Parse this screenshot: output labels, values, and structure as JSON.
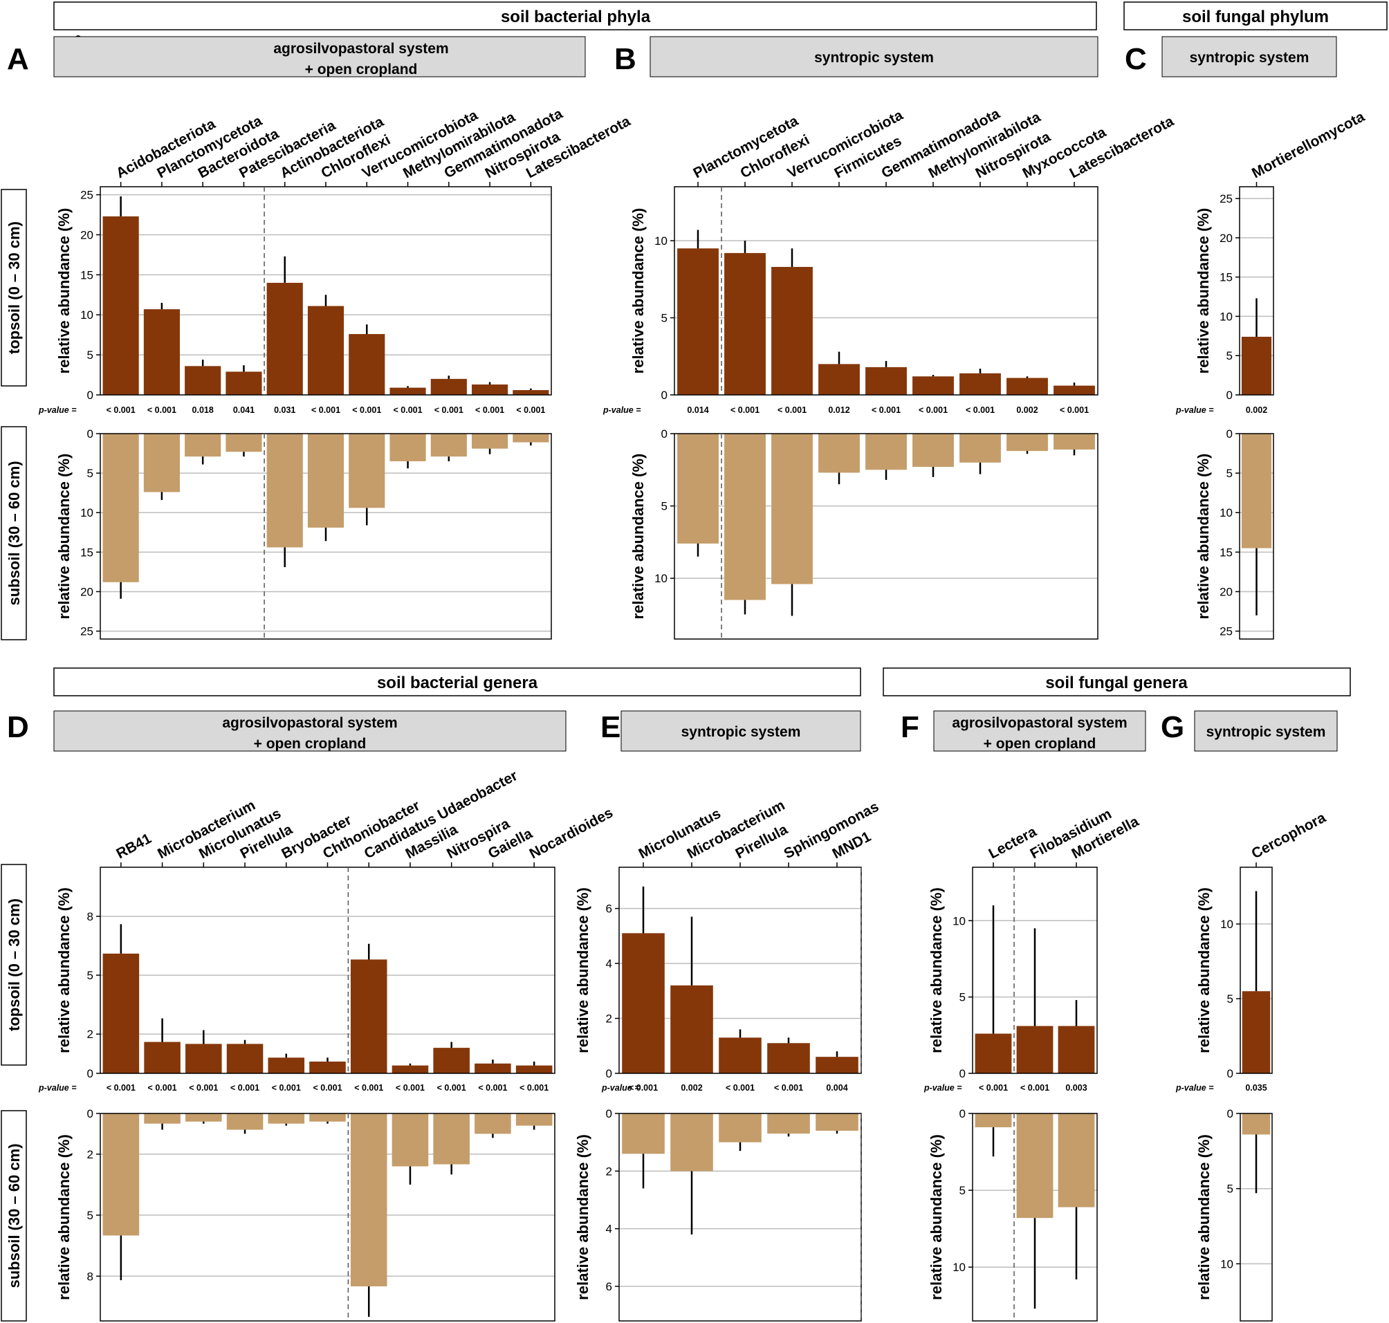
{
  "figure": {
    "sections": [
      "soil bacterial phyla",
      "soil fungal phylum",
      "soil bacterial genera",
      "soil fungal genera"
    ],
    "depth_labels": {
      "topsoil": "topsoil (0 – 30 cm)",
      "subsoil": "subsoil (30 – 60 cm)"
    },
    "y_label": "relative abundance (%)",
    "pvalue_label": "p-value =",
    "colors": {
      "topsoil": "#85370a",
      "subsoil": "#c59d6a",
      "header_fill": "#d9d9d9",
      "grid": "#bdbdbd",
      "error": "#000000"
    }
  },
  "chart_data": [
    {
      "id": "A",
      "type": "bar",
      "title": "agrosilvopastoral system\n+ open cropland",
      "ylabel": "relative abundance (%)",
      "top_ylim": [
        0,
        26
      ],
      "sub_ylim": [
        0,
        26
      ],
      "top_ticks": [
        0,
        5,
        10,
        15,
        20,
        25
      ],
      "sub_ticks": [
        0,
        5,
        10,
        15,
        20,
        25
      ],
      "dashed_after": 4,
      "categories": [
        "Acidobacteriota",
        "Planctomycetota",
        "Bacteroidota",
        "Patescibacteria",
        "Actinobacteriota",
        "Chloroflexi",
        "Verrucomicrobiota",
        "Methylomirabilota",
        "Gemmatimonadota",
        "Nitrospirota",
        "Latescibacterota"
      ],
      "topsoil": [
        22.3,
        10.7,
        3.6,
        2.9,
        14.0,
        11.1,
        7.6,
        0.9,
        2.0,
        1.3,
        0.6
      ],
      "topsoil_err": [
        24.8,
        11.5,
        4.4,
        3.7,
        17.3,
        12.5,
        8.8,
        1.1,
        2.4,
        1.6,
        0.8
      ],
      "subsoil": [
        18.8,
        7.4,
        2.9,
        2.3,
        14.4,
        11.9,
        9.4,
        3.5,
        2.9,
        1.9,
        1.1
      ],
      "subsoil_err": [
        20.9,
        8.4,
        3.9,
        2.9,
        16.9,
        13.6,
        11.6,
        4.4,
        3.5,
        2.6,
        1.5
      ],
      "pvalues": [
        "< 0.001",
        "< 0.001",
        "0.018",
        "0.041",
        "0.031",
        "< 0.001",
        "< 0.001",
        "< 0.001",
        "< 0.001",
        "< 0.001",
        "< 0.001"
      ]
    },
    {
      "id": "B",
      "type": "bar",
      "title": "syntropic system",
      "ylabel": "relative abundance (%)",
      "top_ylim": [
        0,
        13.5
      ],
      "sub_ylim": [
        0,
        14.2
      ],
      "top_ticks": [
        0,
        5,
        10
      ],
      "sub_ticks": [
        0,
        5,
        10
      ],
      "dashed_after": 1,
      "categories": [
        "Planctomycetota",
        "Chloroflexi",
        "Verrucomicrobiota",
        "Firmicutes",
        "Gemmatimonadota",
        "Methylomirabilota",
        "Nitrospirota",
        "Myxococcota",
        "Latescibacterota"
      ],
      "topsoil": [
        9.5,
        9.2,
        8.3,
        2.0,
        1.8,
        1.2,
        1.4,
        1.1,
        0.6
      ],
      "topsoil_err": [
        10.7,
        10.0,
        9.5,
        2.8,
        2.2,
        1.3,
        1.7,
        1.2,
        0.8
      ],
      "subsoil": [
        7.6,
        11.5,
        10.4,
        2.7,
        2.5,
        2.3,
        2.0,
        1.2,
        1.1
      ],
      "subsoil_err": [
        8.5,
        12.5,
        12.6,
        3.5,
        3.2,
        3.0,
        2.8,
        1.4,
        1.5
      ],
      "pvalues": [
        "0.014",
        "< 0.001",
        "< 0.001",
        "0.012",
        "< 0.001",
        "< 0.001",
        "< 0.001",
        "0.002",
        "< 0.001"
      ]
    },
    {
      "id": "C",
      "type": "bar",
      "title": "syntropic system",
      "ylabel": "relative abundance (%)",
      "top_ylim": [
        0,
        26.5
      ],
      "sub_ylim": [
        0,
        26
      ],
      "top_ticks": [
        0,
        5,
        10,
        15,
        20,
        25
      ],
      "sub_ticks": [
        0,
        5,
        10,
        15,
        20,
        25
      ],
      "dashed_after": null,
      "categories": [
        "Mortierellomycota"
      ],
      "topsoil": [
        7.4
      ],
      "topsoil_err": [
        12.3
      ],
      "subsoil": [
        14.5
      ],
      "subsoil_err": [
        23.0
      ],
      "pvalues": [
        "0.002"
      ]
    },
    {
      "id": "D",
      "type": "bar",
      "title": "agrosilvopastoral system\n+ open cropland",
      "ylabel": "relative abundance (%)",
      "top_ylim": [
        0,
        10.5
      ],
      "sub_ylim": [
        0,
        10.2
      ],
      "top_ticks": [
        0,
        2,
        5,
        8
      ],
      "sub_ticks": [
        0,
        2,
        5,
        8
      ],
      "dashed_after": 6,
      "categories": [
        "RB41",
        "Microbacterium",
        "Microlunatus",
        "Pirellula",
        "Bryobacter",
        "Chthoniobacter",
        "Candidatus Udaeobacter",
        "Massilia",
        "Nitrospira",
        "Gaiella",
        "Nocardioides"
      ],
      "topsoil": [
        6.1,
        1.6,
        1.5,
        1.5,
        0.8,
        0.6,
        5.8,
        0.4,
        1.3,
        0.5,
        0.4
      ],
      "topsoil_err": [
        7.6,
        2.8,
        2.2,
        1.7,
        1.0,
        0.8,
        6.6,
        0.5,
        1.6,
        0.7,
        0.6
      ],
      "subsoil": [
        6.0,
        0.5,
        0.4,
        0.8,
        0.5,
        0.4,
        8.5,
        2.6,
        2.5,
        1.0,
        0.6
      ],
      "subsoil_err": [
        8.2,
        0.8,
        0.5,
        1.0,
        0.6,
        0.5,
        10.0,
        3.5,
        3.0,
        1.2,
        0.8
      ],
      "pvalues": [
        "< 0.001",
        "< 0.001",
        "< 0.001",
        "< 0.001",
        "< 0.001",
        "< 0.001",
        "< 0.001",
        "< 0.001",
        "< 0.001",
        "< 0.001",
        "< 0.001"
      ]
    },
    {
      "id": "E",
      "type": "bar",
      "title": "syntropic system",
      "ylabel": "relative abundance (%)",
      "top_ylim": [
        0,
        7.5
      ],
      "sub_ylim": [
        0,
        7.2
      ],
      "top_ticks": [
        0,
        2,
        4,
        6
      ],
      "sub_ticks": [
        0,
        2,
        4,
        6
      ],
      "dashed_after": 5,
      "categories": [
        "Microlunatus",
        "Microbacterium",
        "Pirellula",
        "Sphingomonas",
        "MND1"
      ],
      "topsoil": [
        5.1,
        3.2,
        1.3,
        1.1,
        0.6
      ],
      "topsoil_err": [
        6.8,
        5.7,
        1.6,
        1.3,
        0.8
      ],
      "subsoil": [
        1.4,
        2.0,
        1.0,
        0.7,
        0.6
      ],
      "subsoil_err": [
        2.6,
        4.2,
        1.3,
        0.8,
        0.7
      ],
      "pvalues": [
        "< 0.001",
        "0.002",
        "< 0.001",
        "< 0.001",
        "0.004"
      ]
    },
    {
      "id": "F",
      "type": "bar",
      "title": "agrosilvopastoral system\n+ open cropland",
      "ylabel": "relative abundance (%)",
      "top_ylim": [
        0,
        13.5
      ],
      "sub_ylim": [
        0,
        13.5
      ],
      "top_ticks": [
        0,
        5,
        10
      ],
      "sub_ticks": [
        0,
        5,
        10
      ],
      "dashed_after": 1,
      "categories": [
        "Lectera",
        "Filobasidium",
        "Mortierella"
      ],
      "topsoil": [
        2.6,
        3.1,
        3.1
      ],
      "topsoil_err": [
        11.0,
        9.5,
        4.8
      ],
      "subsoil": [
        0.9,
        6.8,
        6.1
      ],
      "subsoil_err": [
        2.8,
        12.7,
        10.8
      ],
      "pvalues": [
        "< 0.001",
        "< 0.001",
        "0.003"
      ]
    },
    {
      "id": "G",
      "type": "bar",
      "title": "syntropic system",
      "ylabel": "relative abundance (%)",
      "top_ylim": [
        0,
        13.8
      ],
      "sub_ylim": [
        0,
        13.8
      ],
      "top_ticks": [
        0,
        5,
        10
      ],
      "sub_ticks": [
        0,
        5,
        10
      ],
      "dashed_after": null,
      "categories": [
        "Cercophora"
      ],
      "topsoil": [
        5.5
      ],
      "topsoil_err": [
        12.2
      ],
      "subsoil": [
        1.4
      ],
      "subsoil_err": [
        5.3
      ],
      "pvalues": [
        "0.035"
      ]
    }
  ]
}
